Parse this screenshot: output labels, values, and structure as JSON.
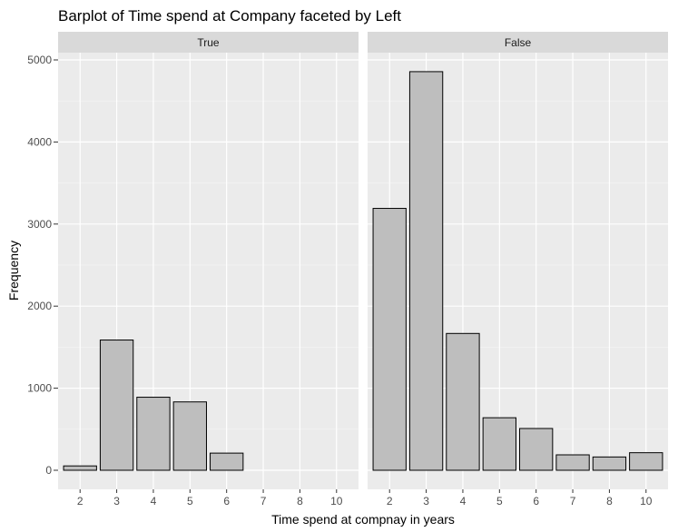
{
  "chart_data": {
    "type": "bar",
    "title": "Barplot of Time spend at Company faceted by Left",
    "xlabel": "Time spend at compnay in years",
    "ylabel": "Frequency",
    "ylim": [
      0,
      5300
    ],
    "y_ticks": [
      "0",
      "1000",
      "2000",
      "3000",
      "4000",
      "5000"
    ],
    "categories": [
      "2",
      "3",
      "4",
      "5",
      "6",
      "7",
      "8",
      "10"
    ],
    "grid": true,
    "facet_variable": "Left",
    "colors": {
      "bar_fill": "#bebebe",
      "bar_stroke": "#000000",
      "panel_bg": "#ebebeb",
      "strip_bg": "#d9d9d9",
      "grid": "#ffffff"
    },
    "facets": [
      {
        "name": "True",
        "values": [
          53,
          1587,
          890,
          833,
          209,
          0,
          0,
          0
        ]
      },
      {
        "name": "False",
        "values": [
          3191,
          4857,
          1667,
          640,
          509,
          188,
          162,
          214
        ]
      }
    ]
  }
}
